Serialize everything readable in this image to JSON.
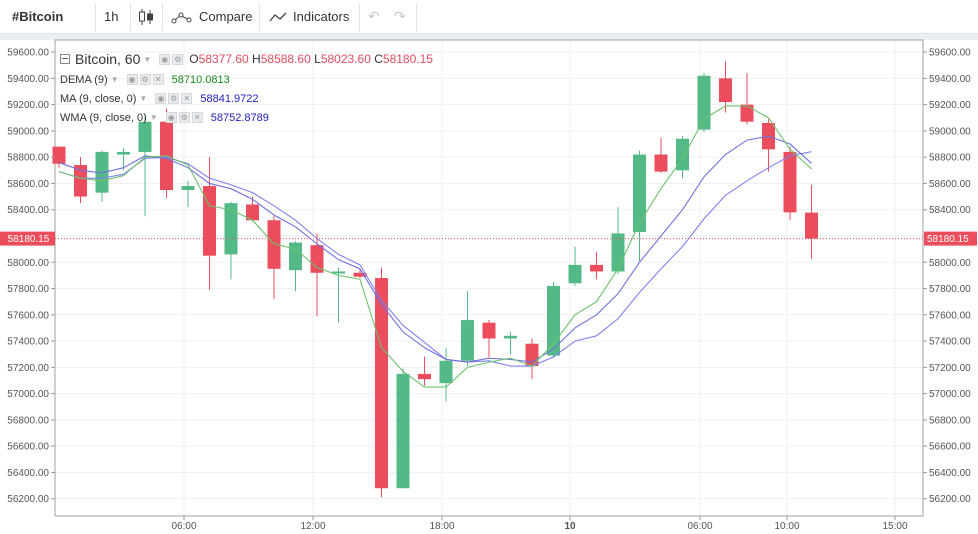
{
  "toolbar": {
    "symbol": "#Bitcoin",
    "interval": "1h",
    "compare_label": "Compare",
    "indicators_label": "Indicators"
  },
  "legend": {
    "main": {
      "title": "Bitcoin, 60",
      "o_label": "O",
      "o_value": "58377.60",
      "h_label": "H",
      "h_value": "58588.60",
      "l_label": "L",
      "l_value": "58023.60",
      "c_label": "C",
      "c_value": "58180.15"
    },
    "indicators": [
      {
        "name": "DEMA (9)",
        "value": "58710.0813",
        "color": "#1a8a1a"
      },
      {
        "name": "MA (9, close, 0)",
        "value": "58841.9722",
        "color": "#1e1ebe"
      },
      {
        "name": "WMA (9, close, 0)",
        "value": "58752.8789",
        "color": "#1e1ebe"
      }
    ]
  },
  "colors": {
    "up": "#53b987",
    "down": "#eb4d5c",
    "dema": "#6cc36c",
    "ma": "#8080f0",
    "wma": "#7070e0",
    "price_line": "#eb4d5c"
  },
  "chart_data": {
    "type": "candlestick",
    "title": "Bitcoin, 60",
    "y_ticks": [
      "59600.00",
      "59400.00",
      "59200.00",
      "59000.00",
      "58800.00",
      "58600.00",
      "58400.00",
      "58200.00",
      "58000.00",
      "57800.00",
      "57600.00",
      "57400.00",
      "57200.00",
      "57000.00",
      "56800.00",
      "56600.00",
      "56400.00",
      "56200.00"
    ],
    "ylim": [
      56000,
      59730
    ],
    "x_ticks": [
      "06:00",
      "12:00",
      "18:00",
      "10",
      "06:00",
      "10:00",
      "15:00"
    ],
    "current_price": "58180.15",
    "candles": [
      {
        "o": 58880,
        "h": 58880,
        "l": 58720,
        "c": 58750
      },
      {
        "o": 58740,
        "h": 58800,
        "l": 58450,
        "c": 58500
      },
      {
        "o": 58530,
        "h": 58850,
        "l": 58460,
        "c": 58840
      },
      {
        "o": 58820,
        "h": 58870,
        "l": 58700,
        "c": 58840
      },
      {
        "o": 58840,
        "h": 59110,
        "l": 58350,
        "c": 59070
      },
      {
        "o": 59070,
        "h": 59170,
        "l": 58490,
        "c": 58550
      },
      {
        "o": 58550,
        "h": 58620,
        "l": 58420,
        "c": 58580
      },
      {
        "o": 58580,
        "h": 58800,
        "l": 57790,
        "c": 58050
      },
      {
        "o": 58060,
        "h": 58460,
        "l": 57870,
        "c": 58450
      },
      {
        "o": 58440,
        "h": 58500,
        "l": 58310,
        "c": 58320
      },
      {
        "o": 58320,
        "h": 58350,
        "l": 57720,
        "c": 57950
      },
      {
        "o": 57940,
        "h": 58160,
        "l": 57780,
        "c": 58150
      },
      {
        "o": 58130,
        "h": 58220,
        "l": 57590,
        "c": 57920
      },
      {
        "o": 57930,
        "h": 57960,
        "l": 57540,
        "c": 57930
      },
      {
        "o": 57920,
        "h": 57950,
        "l": 57880,
        "c": 57890
      },
      {
        "o": 57880,
        "h": 57960,
        "l": 56210,
        "c": 56280
      },
      {
        "o": 56280,
        "h": 57190,
        "l": 56280,
        "c": 57150
      },
      {
        "o": 57150,
        "h": 57280,
        "l": 57060,
        "c": 57110
      },
      {
        "o": 57080,
        "h": 57350,
        "l": 56940,
        "c": 57250
      },
      {
        "o": 57250,
        "h": 57780,
        "l": 57210,
        "c": 57560
      },
      {
        "o": 57540,
        "h": 57560,
        "l": 57280,
        "c": 57420
      },
      {
        "o": 57420,
        "h": 57470,
        "l": 57300,
        "c": 57440
      },
      {
        "o": 57380,
        "h": 57420,
        "l": 57110,
        "c": 57210
      },
      {
        "o": 57290,
        "h": 57850,
        "l": 57270,
        "c": 57820
      },
      {
        "o": 57840,
        "h": 58120,
        "l": 57820,
        "c": 57980
      },
      {
        "o": 57980,
        "h": 58080,
        "l": 57870,
        "c": 57930
      },
      {
        "o": 57930,
        "h": 58420,
        "l": 57910,
        "c": 58220
      },
      {
        "o": 58230,
        "h": 58850,
        "l": 58010,
        "c": 58820
      },
      {
        "o": 58820,
        "h": 58950,
        "l": 58680,
        "c": 58690
      },
      {
        "o": 58700,
        "h": 58960,
        "l": 58640,
        "c": 58940
      },
      {
        "o": 59010,
        "h": 59440,
        "l": 58990,
        "c": 59420
      },
      {
        "o": 59400,
        "h": 59530,
        "l": 59140,
        "c": 59220
      },
      {
        "o": 59200,
        "h": 59440,
        "l": 59050,
        "c": 59070
      },
      {
        "o": 59060,
        "h": 59090,
        "l": 58690,
        "c": 58860
      },
      {
        "o": 58840,
        "h": 58880,
        "l": 58320,
        "c": 58380
      },
      {
        "o": 58378,
        "h": 58589,
        "l": 58024,
        "c": 58180
      }
    ],
    "dema": [
      58690,
      58640,
      58620,
      58660,
      58800,
      58810,
      58740,
      58430,
      58400,
      58320,
      58140,
      58100,
      57960,
      57900,
      57870,
      57350,
      57170,
      57050,
      57050,
      57200,
      57240,
      57270,
      57210,
      57380,
      57600,
      57700,
      57950,
      58300,
      58560,
      58790,
      59090,
      59190,
      59190,
      59100,
      58860,
      58710
    ],
    "ma": [
      58690,
      58640,
      58640,
      58670,
      58790,
      58800,
      58750,
      58640,
      58590,
      58530,
      58430,
      58320,
      58180,
      58060,
      57980,
      57710,
      57520,
      57390,
      57260,
      57240,
      57250,
      57210,
      57210,
      57280,
      57400,
      57440,
      57570,
      57770,
      57950,
      58120,
      58330,
      58510,
      58620,
      58720,
      58810,
      58842
    ],
    "wma": [
      58760,
      58700,
      58680,
      58720,
      58810,
      58790,
      58720,
      58600,
      58560,
      58480,
      58360,
      58270,
      58140,
      58020,
      57950,
      57680,
      57470,
      57350,
      57260,
      57240,
      57270,
      57260,
      57240,
      57340,
      57500,
      57600,
      57760,
      58000,
      58200,
      58400,
      58650,
      58820,
      58930,
      58960,
      58900,
      58753
    ]
  }
}
